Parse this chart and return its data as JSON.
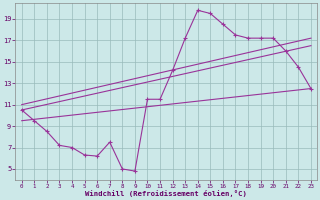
{
  "bg_color": "#cce8e8",
  "line_color": "#993399",
  "grid_color": "#99bbbb",
  "xlabel": "Windchill (Refroidissement éolien,°C)",
  "xlabel_color": "#660066",
  "tick_color": "#660066",
  "xlim": [
    -0.5,
    23.5
  ],
  "ylim": [
    4.0,
    20.5
  ],
  "yticks": [
    5,
    7,
    9,
    11,
    13,
    15,
    17,
    19
  ],
  "xticks": [
    0,
    1,
    2,
    3,
    4,
    5,
    6,
    7,
    8,
    9,
    10,
    11,
    12,
    13,
    14,
    15,
    16,
    17,
    18,
    19,
    20,
    21,
    22,
    23
  ],
  "curve_x": [
    0,
    1,
    2,
    3,
    4,
    5,
    6,
    7,
    8,
    9,
    10,
    11,
    12,
    13,
    14,
    15,
    16,
    17,
    18,
    19,
    20,
    21,
    22,
    23
  ],
  "curve_y": [
    10.5,
    9.5,
    8.5,
    7.2,
    7.0,
    6.3,
    6.2,
    7.5,
    5.0,
    4.8,
    11.5,
    11.5,
    14.2,
    17.2,
    19.8,
    19.5,
    18.5,
    17.5,
    17.2,
    17.2,
    17.2,
    16.0,
    14.5,
    12.5
  ],
  "line1_x": [
    0,
    23
  ],
  "line1_y": [
    11.0,
    17.2
  ],
  "line2_x": [
    0,
    23
  ],
  "line2_y": [
    10.5,
    16.5
  ],
  "line3_x": [
    0,
    23
  ],
  "line3_y": [
    9.5,
    12.5
  ],
  "figsize": [
    3.2,
    2.0
  ],
  "dpi": 100
}
